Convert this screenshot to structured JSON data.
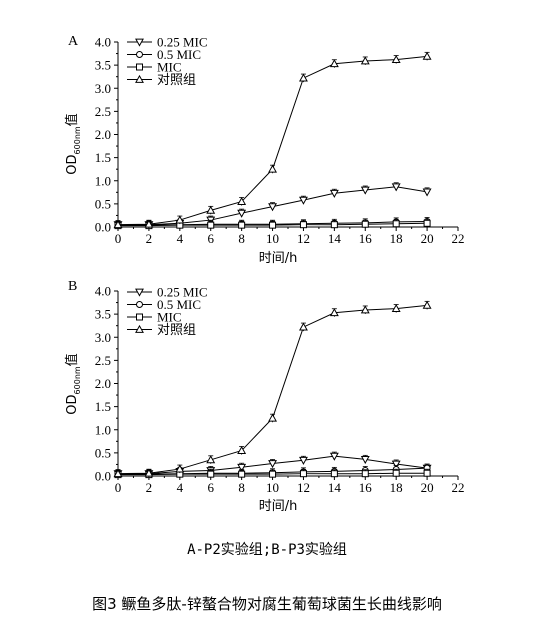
{
  "caption": {
    "sub": "A-P2实验组;B-P3实验组",
    "figure": "图3 鳜鱼多肽-锌螯合物对腐生葡萄球菌生长曲线影响"
  },
  "chart_data": [
    {
      "type": "line",
      "panel": "A",
      "xlabel": "时间/h",
      "ylabel_main": "OD",
      "ylabel_sub": "600nm",
      "ylabel_tail": "值",
      "xlim": [
        0,
        22
      ],
      "ylim": [
        0,
        4.0
      ],
      "xticks": [
        "0",
        "2",
        "4",
        "6",
        "8",
        "10",
        "12",
        "14",
        "16",
        "18",
        "20",
        "22"
      ],
      "yticks": [
        "0.0",
        "0.5",
        "1.0",
        "1.5",
        "2.0",
        "2.5",
        "3.0",
        "3.5",
        "4.0"
      ],
      "legend_position": "top-left",
      "x": [
        0,
        2,
        4,
        6,
        8,
        10,
        12,
        14,
        16,
        18,
        20
      ],
      "series": [
        {
          "name": "0.25 MIC",
          "marker": "triangle-down",
          "values": [
            0.05,
            0.05,
            0.08,
            0.15,
            0.3,
            0.44,
            0.58,
            0.73,
            0.8,
            0.87,
            0.76
          ]
        },
        {
          "name": "0.5 MIC",
          "marker": "circle",
          "values": [
            0.04,
            0.04,
            0.05,
            0.06,
            0.06,
            0.06,
            0.07,
            0.08,
            0.09,
            0.11,
            0.12
          ]
        },
        {
          "name": "MIC",
          "marker": "square",
          "values": [
            0.03,
            0.03,
            0.04,
            0.04,
            0.04,
            0.04,
            0.05,
            0.05,
            0.06,
            0.07,
            0.08
          ]
        },
        {
          "name": "对照组",
          "marker": "triangle-up",
          "values": [
            0.05,
            0.06,
            0.15,
            0.36,
            0.55,
            1.25,
            3.22,
            3.53,
            3.59,
            3.62,
            3.69
          ]
        }
      ]
    },
    {
      "type": "line",
      "panel": "B",
      "xlabel": "时间/h",
      "ylabel_main": "OD",
      "ylabel_sub": "600nm",
      "ylabel_tail": "值",
      "xlim": [
        0,
        22
      ],
      "ylim": [
        0,
        4.0
      ],
      "xticks": [
        "0",
        "2",
        "4",
        "6",
        "8",
        "10",
        "12",
        "14",
        "16",
        "18",
        "20",
        "22"
      ],
      "yticks": [
        "0.0",
        "0.5",
        "1.0",
        "1.5",
        "2.0",
        "2.5",
        "3.0",
        "3.5",
        "4.0"
      ],
      "legend_position": "top-left",
      "x": [
        0,
        2,
        4,
        6,
        8,
        10,
        12,
        14,
        16,
        18,
        20
      ],
      "series": [
        {
          "name": "0.25 MIC",
          "marker": "triangle-down",
          "values": [
            0.05,
            0.05,
            0.1,
            0.12,
            0.19,
            0.27,
            0.34,
            0.43,
            0.36,
            0.26,
            0.17
          ]
        },
        {
          "name": "0.5 MIC",
          "marker": "circle",
          "values": [
            0.04,
            0.04,
            0.05,
            0.06,
            0.06,
            0.07,
            0.09,
            0.1,
            0.12,
            0.14,
            0.17
          ]
        },
        {
          "name": "MIC",
          "marker": "square",
          "values": [
            0.03,
            0.03,
            0.04,
            0.04,
            0.04,
            0.04,
            0.05,
            0.05,
            0.05,
            0.06,
            0.06
          ]
        },
        {
          "name": "对照组",
          "marker": "triangle-up",
          "values": [
            0.05,
            0.06,
            0.15,
            0.35,
            0.55,
            1.25,
            3.22,
            3.53,
            3.59,
            3.62,
            3.69
          ]
        }
      ]
    }
  ]
}
